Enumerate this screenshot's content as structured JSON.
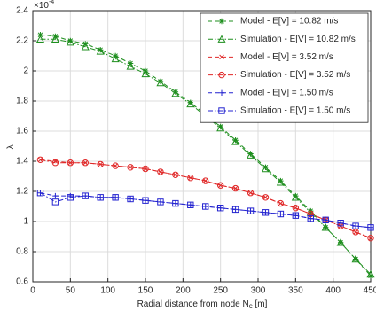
{
  "chart_data": {
    "type": "line",
    "multiplier_parts": [
      "×10",
      "-4"
    ],
    "ylabel_parts": [
      "λ",
      "l"
    ],
    "xlabel_parts": [
      "Radial distance from node N",
      "c",
      " [m]"
    ],
    "x": [
      10,
      30,
      50,
      70,
      90,
      110,
      130,
      150,
      170,
      190,
      210,
      230,
      250,
      270,
      290,
      310,
      330,
      350,
      370,
      390,
      410,
      430,
      450
    ],
    "series": [
      {
        "name": "Model - E[V] = 10.82 m/s",
        "color": "#1f8f1f",
        "marker": "star",
        "dash": "dash",
        "values": [
          2.24,
          2.23,
          2.2,
          2.18,
          2.14,
          2.1,
          2.05,
          2.0,
          1.93,
          1.86,
          1.79,
          1.71,
          1.63,
          1.54,
          1.45,
          1.36,
          1.27,
          1.17,
          1.07,
          0.96,
          0.86,
          0.75,
          0.64
        ]
      },
      {
        "name": "Simulation - E[V] = 10.82 m/s",
        "color": "#1f8f1f",
        "marker": "triangle",
        "dash": "dashdot",
        "values": [
          2.21,
          2.21,
          2.19,
          2.16,
          2.13,
          2.08,
          2.03,
          1.98,
          1.92,
          1.85,
          1.78,
          1.7,
          1.62,
          1.53,
          1.44,
          1.35,
          1.26,
          1.16,
          1.06,
          0.96,
          0.86,
          0.75,
          0.65
        ]
      },
      {
        "name": "Model - E[V] = 3.52 m/s",
        "color": "#e02828",
        "marker": "x",
        "dash": "dash",
        "values": [
          1.41,
          1.4,
          1.39,
          1.39,
          1.38,
          1.37,
          1.36,
          1.35,
          1.33,
          1.31,
          1.29,
          1.27,
          1.24,
          1.22,
          1.19,
          1.16,
          1.12,
          1.09,
          1.05,
          1.01,
          0.97,
          0.93,
          0.89
        ]
      },
      {
        "name": "Simulation - E[V] = 3.52 m/s",
        "color": "#e02828",
        "marker": "circle",
        "dash": "dashdot",
        "values": [
          1.41,
          1.39,
          1.39,
          1.39,
          1.38,
          1.37,
          1.36,
          1.35,
          1.33,
          1.31,
          1.29,
          1.27,
          1.24,
          1.22,
          1.19,
          1.16,
          1.12,
          1.09,
          1.05,
          1.01,
          0.97,
          0.93,
          0.89
        ]
      },
      {
        "name": "Model - E[V] = 1.50 m/s",
        "color": "#2424d0",
        "marker": "plus",
        "dash": "dash",
        "values": [
          1.19,
          1.17,
          1.17,
          1.17,
          1.16,
          1.16,
          1.15,
          1.14,
          1.13,
          1.12,
          1.11,
          1.1,
          1.09,
          1.08,
          1.07,
          1.06,
          1.05,
          1.04,
          1.02,
          1.01,
          0.99,
          0.97,
          0.96
        ]
      },
      {
        "name": "Simulation - E[V] = 1.50 m/s",
        "color": "#2424d0",
        "marker": "square",
        "dash": "dashdot",
        "values": [
          1.19,
          1.13,
          1.16,
          1.17,
          1.16,
          1.16,
          1.15,
          1.14,
          1.13,
          1.12,
          1.11,
          1.1,
          1.09,
          1.08,
          1.07,
          1.06,
          1.05,
          1.04,
          1.02,
          1.01,
          0.99,
          0.97,
          0.96
        ]
      }
    ],
    "xlim": [
      0,
      450
    ],
    "xticks": [
      0,
      50,
      100,
      150,
      200,
      250,
      300,
      350,
      400,
      450
    ],
    "ylim": [
      0.6,
      2.4
    ],
    "yticks": [
      0.6,
      0.8,
      1,
      1.2,
      1.4,
      1.6,
      1.8,
      2,
      2.2,
      2.4
    ],
    "grid": true,
    "legend": "top-right"
  }
}
